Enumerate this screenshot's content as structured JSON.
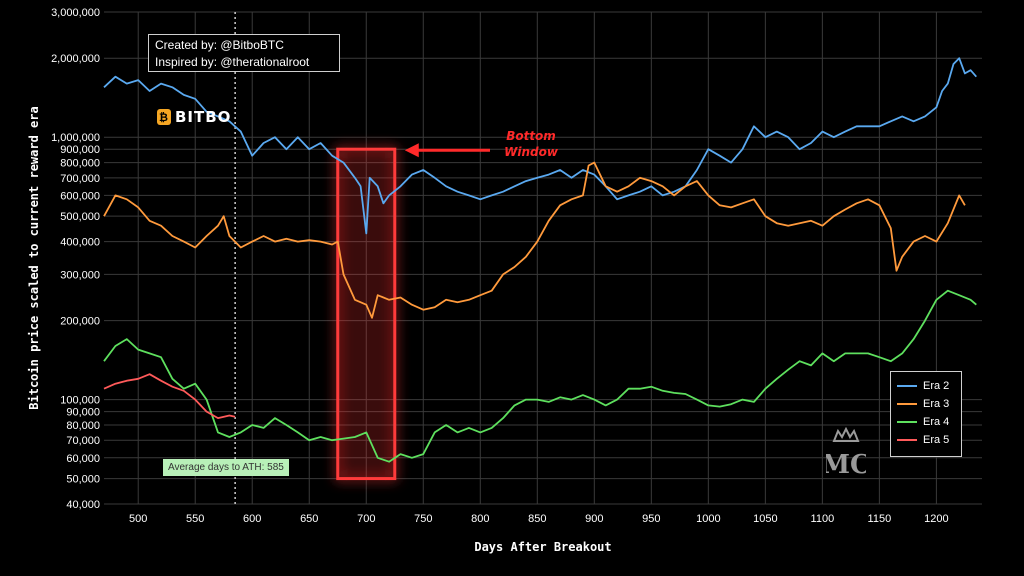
{
  "credits": {
    "line1": "Created by: @BitboBTC",
    "line2": "Inspired by: @therationalroot"
  },
  "brand": {
    "coin_glyph": "₿",
    "name": "BITBO"
  },
  "annotation": {
    "line1": "Bottom",
    "line2": "Window",
    "color": "#ff2a2a"
  },
  "ath_label": "Average days to ATH: 585",
  "watermark": "MC",
  "chart_data": {
    "type": "line",
    "title": "",
    "xlabel": "Days After Breakout",
    "ylabel": "Bitcoin price scaled to current reward era",
    "y_scale": "log",
    "xlim": [
      470,
      1240
    ],
    "ylim": [
      40000,
      3000000
    ],
    "x_ticks": [
      500,
      550,
      600,
      650,
      700,
      750,
      800,
      850,
      900,
      950,
      1000,
      1050,
      1100,
      1150,
      1200
    ],
    "y_ticks": [
      {
        "v": 40000,
        "label": "40,000"
      },
      {
        "v": 50000,
        "label": "50,000"
      },
      {
        "v": 60000,
        "label": "60,000"
      },
      {
        "v": 70000,
        "label": "70,000"
      },
      {
        "v": 80000,
        "label": "80,000"
      },
      {
        "v": 90000,
        "label": "90,000"
      },
      {
        "v": 100000,
        "label": "100,000"
      },
      {
        "v": 200000,
        "label": "200,000"
      },
      {
        "v": 300000,
        "label": "300,000"
      },
      {
        "v": 400000,
        "label": "400,000"
      },
      {
        "v": 500000,
        "label": "500,000"
      },
      {
        "v": 600000,
        "label": "600,000"
      },
      {
        "v": 700000,
        "label": "700,000"
      },
      {
        "v": 800000,
        "label": "800,000"
      },
      {
        "v": 900000,
        "label": "900,000"
      },
      {
        "v": 1000000,
        "label": "1,000,000"
      },
      {
        "v": 2000000,
        "label": "2,000,000"
      },
      {
        "v": 3000000,
        "label": "3,000,000"
      }
    ],
    "grid": true,
    "legend_position": "lower-right",
    "vline": {
      "x": 585,
      "style": "dotted",
      "label": "Average days to ATH: 585"
    },
    "highlight_window": {
      "x0": 675,
      "x1": 725,
      "y0": 50000,
      "y1": 900000,
      "label": "Bottom Window"
    },
    "series": [
      {
        "name": "Era 2",
        "color": "#5aa9f0",
        "points": [
          [
            470,
            1550000
          ],
          [
            480,
            1700000
          ],
          [
            490,
            1600000
          ],
          [
            500,
            1650000
          ],
          [
            510,
            1500000
          ],
          [
            520,
            1600000
          ],
          [
            530,
            1550000
          ],
          [
            540,
            1450000
          ],
          [
            550,
            1400000
          ],
          [
            560,
            1250000
          ],
          [
            570,
            1200000
          ],
          [
            580,
            1150000
          ],
          [
            590,
            1050000
          ],
          [
            600,
            850000
          ],
          [
            610,
            950000
          ],
          [
            620,
            1000000
          ],
          [
            630,
            900000
          ],
          [
            640,
            1000000
          ],
          [
            650,
            900000
          ],
          [
            660,
            950000
          ],
          [
            670,
            850000
          ],
          [
            680,
            800000
          ],
          [
            690,
            700000
          ],
          [
            695,
            650000
          ],
          [
            700,
            430000
          ],
          [
            703,
            700000
          ],
          [
            710,
            650000
          ],
          [
            715,
            560000
          ],
          [
            720,
            600000
          ],
          [
            730,
            650000
          ],
          [
            740,
            720000
          ],
          [
            750,
            750000
          ],
          [
            760,
            700000
          ],
          [
            770,
            650000
          ],
          [
            780,
            620000
          ],
          [
            790,
            600000
          ],
          [
            800,
            580000
          ],
          [
            810,
            600000
          ],
          [
            820,
            620000
          ],
          [
            830,
            650000
          ],
          [
            840,
            680000
          ],
          [
            850,
            700000
          ],
          [
            860,
            720000
          ],
          [
            870,
            750000
          ],
          [
            880,
            700000
          ],
          [
            890,
            750000
          ],
          [
            900,
            720000
          ],
          [
            910,
            650000
          ],
          [
            920,
            580000
          ],
          [
            930,
            600000
          ],
          [
            940,
            620000
          ],
          [
            950,
            650000
          ],
          [
            960,
            600000
          ],
          [
            970,
            620000
          ],
          [
            980,
            650000
          ],
          [
            990,
            750000
          ],
          [
            1000,
            900000
          ],
          [
            1010,
            850000
          ],
          [
            1020,
            800000
          ],
          [
            1030,
            900000
          ],
          [
            1040,
            1100000
          ],
          [
            1050,
            1000000
          ],
          [
            1060,
            1050000
          ],
          [
            1070,
            1000000
          ],
          [
            1080,
            900000
          ],
          [
            1090,
            950000
          ],
          [
            1100,
            1050000
          ],
          [
            1110,
            1000000
          ],
          [
            1120,
            1050000
          ],
          [
            1130,
            1100000
          ],
          [
            1140,
            1100000
          ],
          [
            1150,
            1100000
          ],
          [
            1160,
            1150000
          ],
          [
            1170,
            1200000
          ],
          [
            1180,
            1150000
          ],
          [
            1190,
            1200000
          ],
          [
            1200,
            1300000
          ],
          [
            1205,
            1500000
          ],
          [
            1210,
            1600000
          ],
          [
            1215,
            1900000
          ],
          [
            1220,
            2000000
          ],
          [
            1225,
            1750000
          ],
          [
            1230,
            1800000
          ],
          [
            1235,
            1700000
          ]
        ]
      },
      {
        "name": "Era 3",
        "color": "#ff9a3c",
        "points": [
          [
            470,
            500000
          ],
          [
            480,
            600000
          ],
          [
            490,
            580000
          ],
          [
            500,
            540000
          ],
          [
            510,
            480000
          ],
          [
            520,
            460000
          ],
          [
            530,
            420000
          ],
          [
            540,
            400000
          ],
          [
            550,
            380000
          ],
          [
            560,
            420000
          ],
          [
            570,
            460000
          ],
          [
            575,
            500000
          ],
          [
            580,
            420000
          ],
          [
            590,
            380000
          ],
          [
            600,
            400000
          ],
          [
            610,
            420000
          ],
          [
            620,
            400000
          ],
          [
            630,
            410000
          ],
          [
            640,
            400000
          ],
          [
            650,
            405000
          ],
          [
            660,
            400000
          ],
          [
            670,
            390000
          ],
          [
            675,
            400000
          ],
          [
            680,
            300000
          ],
          [
            690,
            240000
          ],
          [
            700,
            230000
          ],
          [
            705,
            205000
          ],
          [
            710,
            250000
          ],
          [
            720,
            240000
          ],
          [
            730,
            245000
          ],
          [
            740,
            230000
          ],
          [
            750,
            220000
          ],
          [
            760,
            225000
          ],
          [
            770,
            240000
          ],
          [
            780,
            235000
          ],
          [
            790,
            240000
          ],
          [
            800,
            250000
          ],
          [
            810,
            260000
          ],
          [
            820,
            300000
          ],
          [
            830,
            320000
          ],
          [
            840,
            350000
          ],
          [
            850,
            400000
          ],
          [
            860,
            480000
          ],
          [
            870,
            550000
          ],
          [
            880,
            580000
          ],
          [
            890,
            600000
          ],
          [
            895,
            780000
          ],
          [
            900,
            800000
          ],
          [
            910,
            650000
          ],
          [
            920,
            620000
          ],
          [
            930,
            650000
          ],
          [
            940,
            700000
          ],
          [
            950,
            680000
          ],
          [
            960,
            650000
          ],
          [
            970,
            600000
          ],
          [
            980,
            650000
          ],
          [
            990,
            680000
          ],
          [
            1000,
            600000
          ],
          [
            1010,
            550000
          ],
          [
            1020,
            540000
          ],
          [
            1030,
            560000
          ],
          [
            1040,
            580000
          ],
          [
            1050,
            500000
          ],
          [
            1060,
            470000
          ],
          [
            1070,
            460000
          ],
          [
            1080,
            470000
          ],
          [
            1090,
            480000
          ],
          [
            1100,
            460000
          ],
          [
            1110,
            500000
          ],
          [
            1120,
            530000
          ],
          [
            1130,
            560000
          ],
          [
            1140,
            580000
          ],
          [
            1150,
            550000
          ],
          [
            1160,
            450000
          ],
          [
            1165,
            310000
          ],
          [
            1170,
            350000
          ],
          [
            1180,
            400000
          ],
          [
            1190,
            420000
          ],
          [
            1200,
            400000
          ],
          [
            1210,
            470000
          ],
          [
            1220,
            600000
          ],
          [
            1225,
            550000
          ]
        ]
      },
      {
        "name": "Era 4",
        "color": "#5ee05e",
        "points": [
          [
            470,
            140000
          ],
          [
            480,
            160000
          ],
          [
            490,
            170000
          ],
          [
            500,
            155000
          ],
          [
            510,
            150000
          ],
          [
            520,
            145000
          ],
          [
            530,
            120000
          ],
          [
            540,
            110000
          ],
          [
            550,
            115000
          ],
          [
            560,
            100000
          ],
          [
            570,
            75000
          ],
          [
            580,
            72000
          ],
          [
            590,
            75000
          ],
          [
            600,
            80000
          ],
          [
            610,
            78000
          ],
          [
            620,
            85000
          ],
          [
            630,
            80000
          ],
          [
            640,
            75000
          ],
          [
            650,
            70000
          ],
          [
            660,
            72000
          ],
          [
            670,
            70000
          ],
          [
            680,
            71000
          ],
          [
            690,
            72000
          ],
          [
            700,
            75000
          ],
          [
            710,
            60000
          ],
          [
            720,
            58000
          ],
          [
            730,
            62000
          ],
          [
            740,
            60000
          ],
          [
            750,
            62000
          ],
          [
            760,
            75000
          ],
          [
            770,
            80000
          ],
          [
            780,
            75000
          ],
          [
            790,
            78000
          ],
          [
            800,
            75000
          ],
          [
            810,
            78000
          ],
          [
            820,
            85000
          ],
          [
            830,
            95000
          ],
          [
            840,
            100000
          ],
          [
            850,
            100000
          ],
          [
            860,
            98000
          ],
          [
            870,
            102000
          ],
          [
            880,
            100000
          ],
          [
            890,
            104000
          ],
          [
            900,
            100000
          ],
          [
            910,
            95000
          ],
          [
            920,
            100000
          ],
          [
            930,
            110000
          ],
          [
            940,
            110000
          ],
          [
            950,
            112000
          ],
          [
            960,
            108000
          ],
          [
            970,
            106000
          ],
          [
            980,
            105000
          ],
          [
            990,
            100000
          ],
          [
            1000,
            95000
          ],
          [
            1010,
            94000
          ],
          [
            1020,
            96000
          ],
          [
            1030,
            100000
          ],
          [
            1040,
            98000
          ],
          [
            1050,
            110000
          ],
          [
            1060,
            120000
          ],
          [
            1070,
            130000
          ],
          [
            1080,
            140000
          ],
          [
            1090,
            135000
          ],
          [
            1100,
            150000
          ],
          [
            1110,
            140000
          ],
          [
            1120,
            150000
          ],
          [
            1130,
            150000
          ],
          [
            1140,
            150000
          ],
          [
            1150,
            145000
          ],
          [
            1160,
            140000
          ],
          [
            1170,
            150000
          ],
          [
            1180,
            170000
          ],
          [
            1190,
            200000
          ],
          [
            1200,
            240000
          ],
          [
            1210,
            260000
          ],
          [
            1220,
            250000
          ],
          [
            1230,
            240000
          ],
          [
            1235,
            230000
          ]
        ]
      },
      {
        "name": "Era 5",
        "color": "#ff5a5a",
        "points": [
          [
            470,
            110000
          ],
          [
            480,
            115000
          ],
          [
            490,
            118000
          ],
          [
            500,
            120000
          ],
          [
            510,
            125000
          ],
          [
            520,
            118000
          ],
          [
            530,
            112000
          ],
          [
            540,
            108000
          ],
          [
            550,
            100000
          ],
          [
            560,
            90000
          ],
          [
            570,
            85000
          ],
          [
            580,
            87000
          ],
          [
            585,
            86000
          ]
        ]
      }
    ]
  }
}
